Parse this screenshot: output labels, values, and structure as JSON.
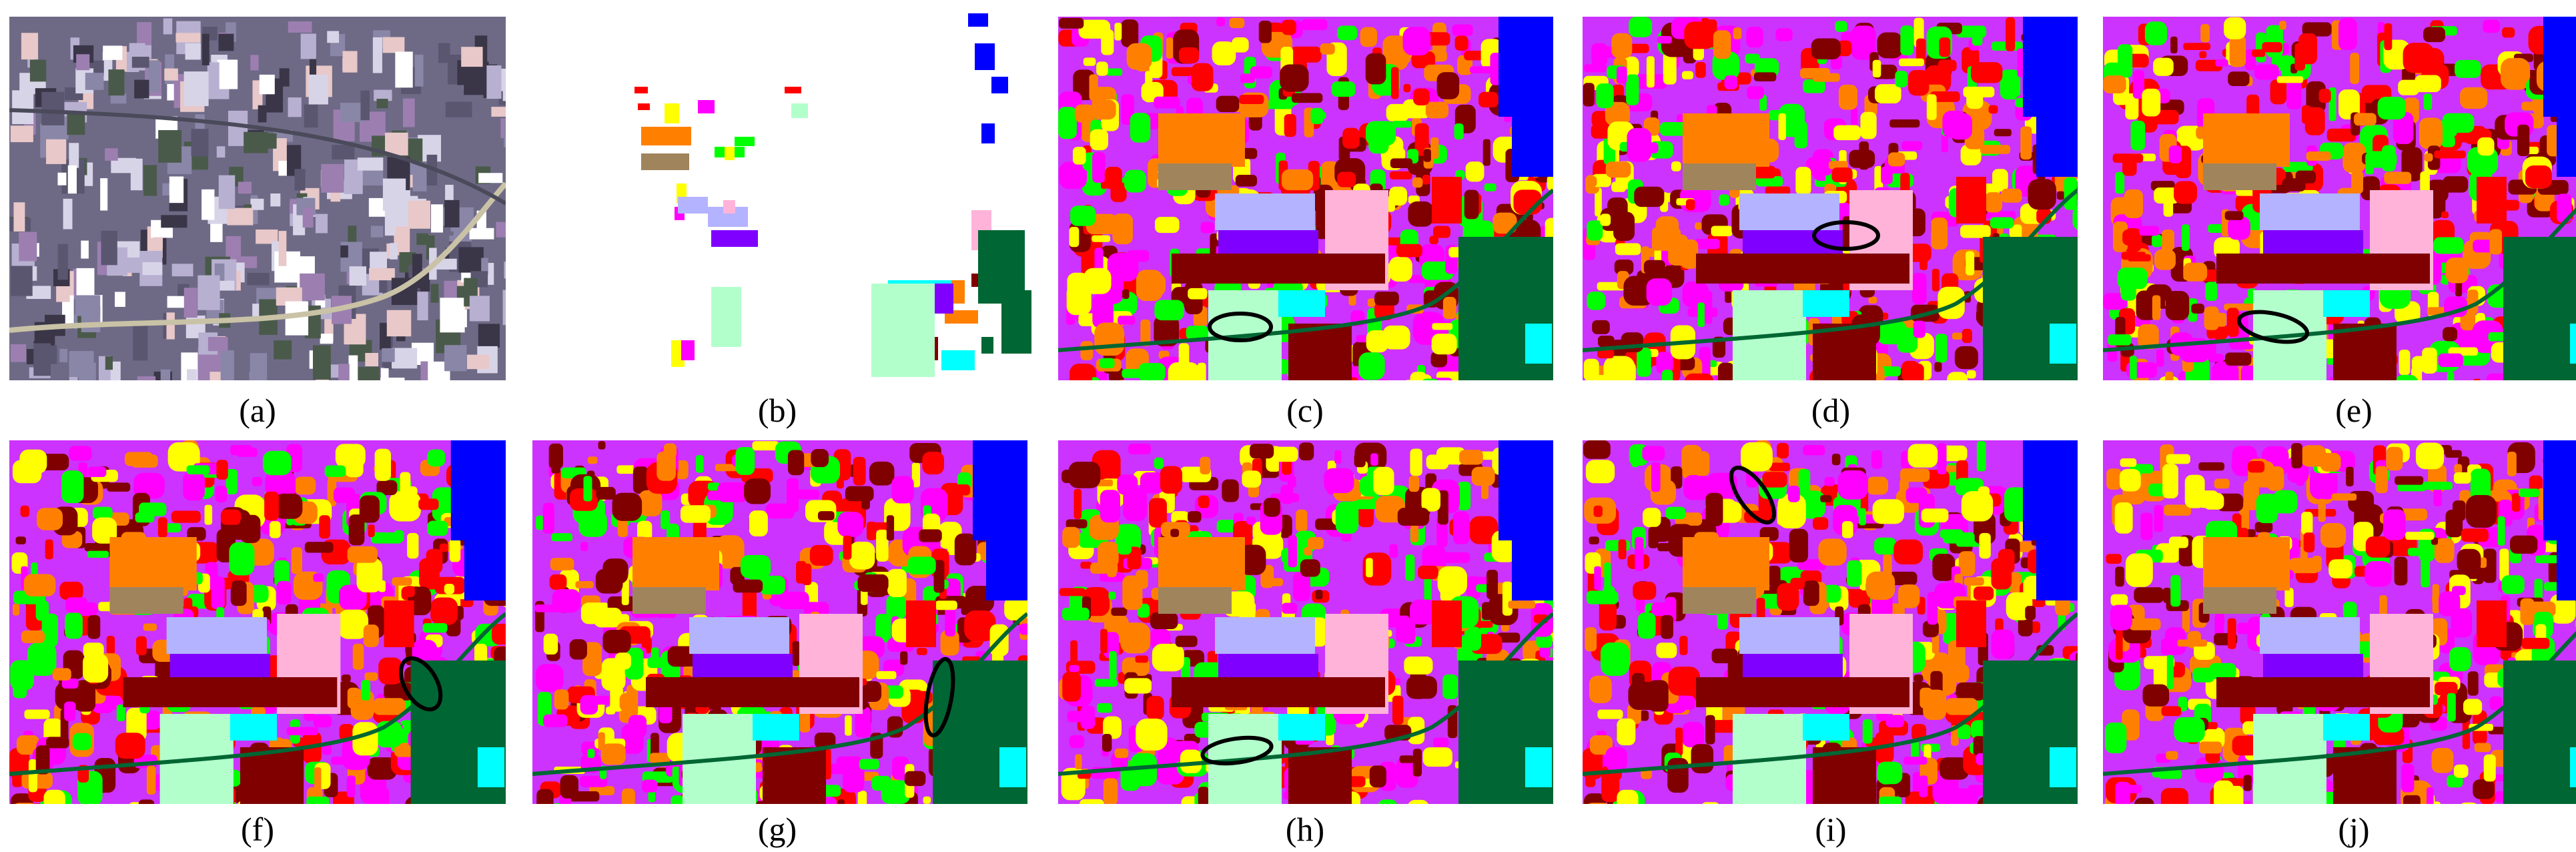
{
  "figure": {
    "panels": [
      {
        "id": "a",
        "kind": "false-color-image",
        "caption": "(a)"
      },
      {
        "id": "b",
        "kind": "ground-truth",
        "caption": "(b)"
      },
      {
        "id": "c",
        "kind": "classification-map",
        "caption": "(c)",
        "highlight": true
      },
      {
        "id": "d",
        "kind": "classification-map",
        "caption": "(d)",
        "highlight": true
      },
      {
        "id": "e",
        "kind": "classification-map",
        "caption": "(e)",
        "highlight": true
      },
      {
        "id": "f",
        "kind": "classification-map",
        "caption": "(f)",
        "highlight": true
      },
      {
        "id": "g",
        "kind": "classification-map",
        "caption": "(g)",
        "highlight": true
      },
      {
        "id": "h",
        "kind": "classification-map",
        "caption": "(h)",
        "highlight": true
      },
      {
        "id": "i",
        "kind": "classification-map",
        "caption": "(i)",
        "highlight": true
      },
      {
        "id": "j",
        "kind": "classification-map",
        "caption": "(j)",
        "highlight": false
      }
    ],
    "class_colors": [
      "#0000ff",
      "#ff00ff",
      "#ffff00",
      "#00ff00",
      "#ff8000",
      "#800000",
      "#ff0000",
      "#006633",
      "#b3b3ff",
      "#ffb3d9",
      "#00ffff",
      "#8000ff",
      "#b3ffcc",
      "#a0845c",
      "#ff0080"
    ],
    "highlight_color": "#000000"
  }
}
